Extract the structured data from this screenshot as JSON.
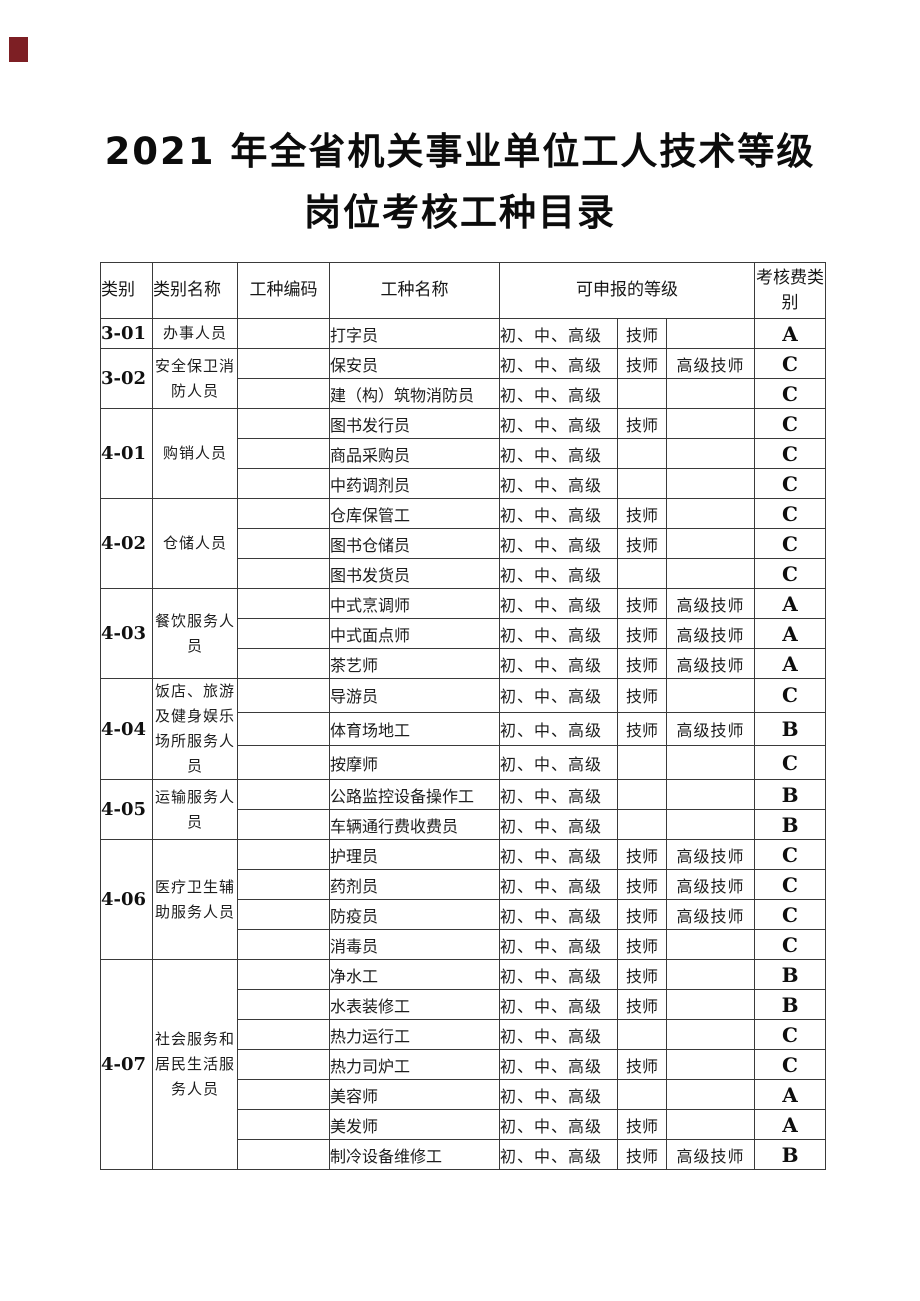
{
  "page": {
    "corner_marker_color": "#7d1f24"
  },
  "title": {
    "line1": "2021 年全省机关事业单位工人技术等级",
    "line2": "岗位考核工种目录"
  },
  "table": {
    "headers": {
      "category_code": "类别",
      "category_name": "类别名称",
      "job_code": "工种编码",
      "job_name": "工种名称",
      "levels": "可申报的等级",
      "fee_category": "考核费类别"
    },
    "groups": [
      {
        "code": "3-01",
        "name": "办事人员",
        "rows": [
          {
            "job": "打字员",
            "levels": "初、中、高级",
            "technician": "技师",
            "senior": "",
            "fee": "A"
          }
        ]
      },
      {
        "code": "3-02",
        "name": "安全保卫消防人员",
        "rows": [
          {
            "job": "保安员",
            "levels": "初、中、高级",
            "technician": "技师",
            "senior": "高级技师",
            "fee": "C"
          },
          {
            "job": "建（构）筑物消防员",
            "levels": "初、中、高级",
            "technician": "",
            "senior": "",
            "fee": "C"
          }
        ]
      },
      {
        "code": "4-01",
        "name": "购销人员",
        "rows": [
          {
            "job": "图书发行员",
            "levels": "初、中、高级",
            "technician": "技师",
            "senior": "",
            "fee": "C"
          },
          {
            "job": "商品采购员",
            "levels": "初、中、高级",
            "technician": "",
            "senior": "",
            "fee": "C"
          },
          {
            "job": "中药调剂员",
            "levels": "初、中、高级",
            "technician": "",
            "senior": "",
            "fee": "C"
          }
        ]
      },
      {
        "code": "4-02",
        "name": "仓储人员",
        "rows": [
          {
            "job": "仓库保管工",
            "levels": "初、中、高级",
            "technician": "技师",
            "senior": "",
            "fee": "C"
          },
          {
            "job": "图书仓储员",
            "levels": "初、中、高级",
            "technician": "技师",
            "senior": "",
            "fee": "C"
          },
          {
            "job": "图书发货员",
            "levels": "初、中、高级",
            "technician": "",
            "senior": "",
            "fee": "C"
          }
        ]
      },
      {
        "code": "4-03",
        "name": "餐饮服务人员",
        "rows": [
          {
            "job": "中式烹调师",
            "levels": "初、中、高级",
            "technician": "技师",
            "senior": "高级技师",
            "fee": "A"
          },
          {
            "job": "中式面点师",
            "levels": "初、中、高级",
            "technician": "技师",
            "senior": "高级技师",
            "fee": "A"
          },
          {
            "job": "茶艺师",
            "levels": "初、中、高级",
            "technician": "技师",
            "senior": "高级技师",
            "fee": "A"
          }
        ]
      },
      {
        "code": "4-04",
        "name": "饭店、旅游及健身娱乐场所服务人员",
        "rows": [
          {
            "job": "导游员",
            "levels": "初、中、高级",
            "technician": "技师",
            "senior": "",
            "fee": "C"
          },
          {
            "job": "体育场地工",
            "levels": "初、中、高级",
            "technician": "技师",
            "senior": "高级技师",
            "fee": "B"
          },
          {
            "job": "按摩师",
            "levels": "初、中、高级",
            "technician": "",
            "senior": "",
            "fee": "C"
          }
        ]
      },
      {
        "code": "4-05",
        "name": "运输服务人员",
        "rows": [
          {
            "job": "公路监控设备操作工",
            "levels": "初、中、高级",
            "technician": "",
            "senior": "",
            "fee": "B"
          },
          {
            "job": "车辆通行费收费员",
            "levels": "初、中、高级",
            "technician": "",
            "senior": "",
            "fee": "B"
          }
        ]
      },
      {
        "code": "4-06",
        "name": "医疗卫生辅助服务人员",
        "rows": [
          {
            "job": "护理员",
            "levels": "初、中、高级",
            "technician": "技师",
            "senior": "高级技师",
            "fee": "C"
          },
          {
            "job": "药剂员",
            "levels": "初、中、高级",
            "technician": "技师",
            "senior": "高级技师",
            "fee": "C"
          },
          {
            "job": "防疫员",
            "levels": "初、中、高级",
            "technician": "技师",
            "senior": "高级技师",
            "fee": "C"
          },
          {
            "job": "消毒员",
            "levels": "初、中、高级",
            "technician": "技师",
            "senior": "",
            "fee": "C"
          }
        ]
      },
      {
        "code": "4-07",
        "name": "社会服务和居民生活服务人员",
        "rows": [
          {
            "job": "净水工",
            "levels": "初、中、高级",
            "technician": "技师",
            "senior": "",
            "fee": "B"
          },
          {
            "job": "水表装修工",
            "levels": "初、中、高级",
            "technician": "技师",
            "senior": "",
            "fee": "B"
          },
          {
            "job": "热力运行工",
            "levels": "初、中、高级",
            "technician": "",
            "senior": "",
            "fee": "C"
          },
          {
            "job": "热力司炉工",
            "levels": "初、中、高级",
            "technician": "技师",
            "senior": "",
            "fee": "C"
          },
          {
            "job": "美容师",
            "levels": "初、中、高级",
            "technician": "",
            "senior": "",
            "fee": "A"
          },
          {
            "job": "美发师",
            "levels": "初、中、高级",
            "technician": "技师",
            "senior": "",
            "fee": "A"
          },
          {
            "job": "制冷设备维修工",
            "levels": "初、中、高级",
            "technician": "技师",
            "senior": "高级技师",
            "fee": "B"
          }
        ]
      }
    ]
  }
}
